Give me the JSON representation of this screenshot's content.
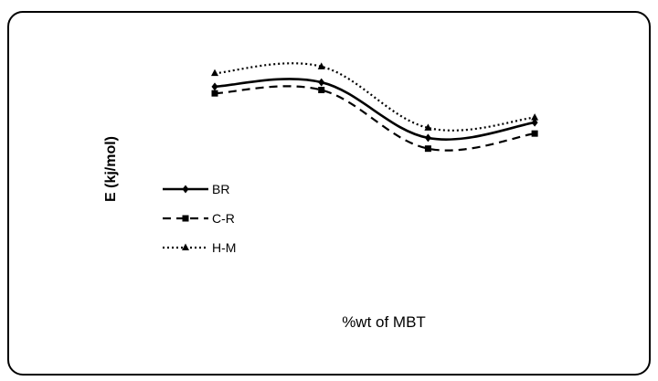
{
  "chart_data": {
    "type": "line",
    "title": "",
    "xlabel": "%wt of MBT",
    "ylabel": "E (kj/mol)",
    "x_positions": 4,
    "grid": false,
    "legend": "left",
    "series": [
      {
        "name": "BR",
        "style": "solid",
        "marker": "diamond",
        "color": "#000000",
        "values": [
          60.5,
          61.8,
          45.2,
          49.8
        ]
      },
      {
        "name": "C-R",
        "style": "dashed",
        "marker": "square",
        "color": "#000000",
        "values": [
          58.5,
          59.5,
          42.0,
          46.5
        ]
      },
      {
        "name": "H-M",
        "style": "dotted",
        "marker": "triangle",
        "color": "#000000",
        "values": [
          64.5,
          66.5,
          48.2,
          51.3
        ]
      }
    ]
  }
}
